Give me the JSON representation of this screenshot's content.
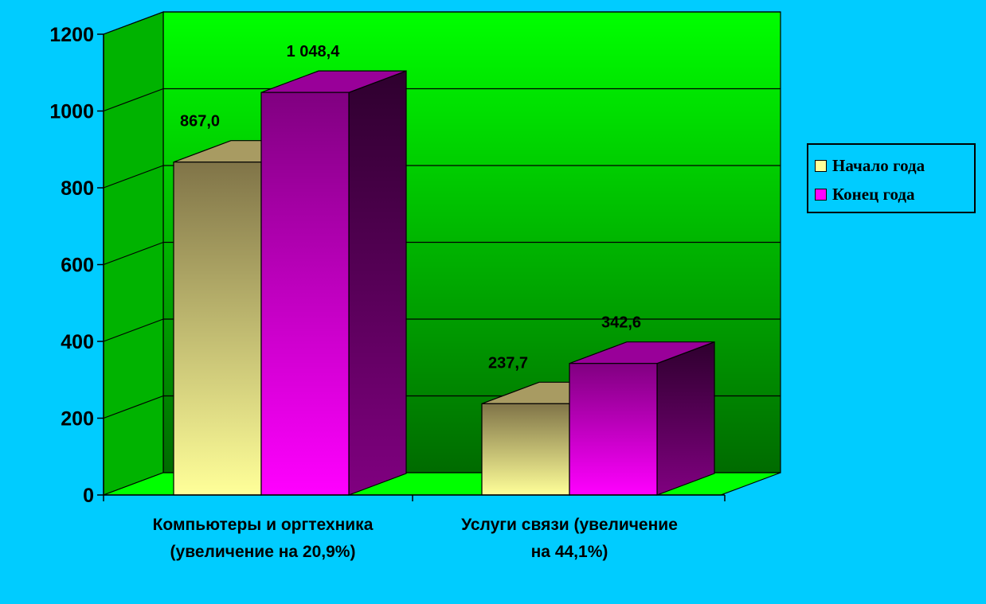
{
  "chart_data": {
    "type": "bar",
    "categories": [
      [
        "Компьютеры и оргтехника",
        "(увеличение на 20,9%)"
      ],
      [
        "Услуги связи (увеличение",
        "на 44,1%)"
      ]
    ],
    "series": [
      {
        "name": "Начало года",
        "values": [
          867.0,
          237.7
        ],
        "labels": [
          "867,0",
          "237,7"
        ],
        "color": "#ffff99"
      },
      {
        "name": "Конец года",
        "values": [
          1048.4,
          342.6
        ],
        "labels": [
          "1 048,4",
          "342,6"
        ],
        "color": "#ff00ff"
      }
    ],
    "ylim": [
      0,
      1200
    ],
    "yticks": [
      "0",
      "200",
      "400",
      "600",
      "800",
      "1000",
      "1200"
    ],
    "grid": true,
    "legend_position": "right",
    "colors": {
      "background": "#00ccff",
      "wall": "#00ff00",
      "floor": "#00ff00"
    }
  }
}
